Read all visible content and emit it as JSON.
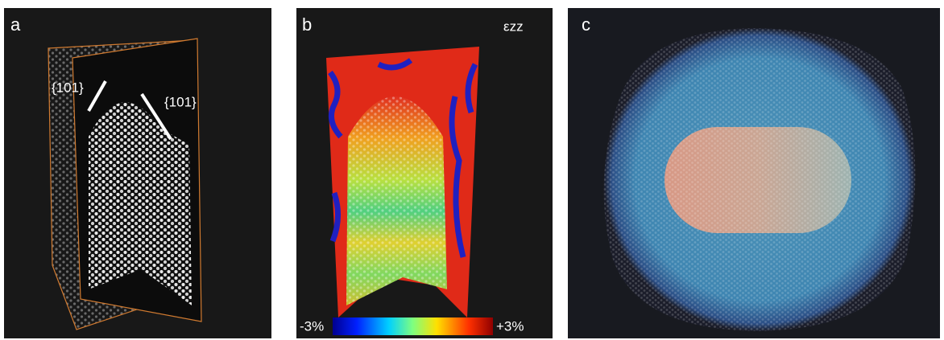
{
  "panels": [
    {
      "label": "a",
      "annotations": [
        "{101}",
        "{101}"
      ]
    },
    {
      "label": "b",
      "quantity": "εzz",
      "colorbar": {
        "min_label": "-3%",
        "max_label": "+3%"
      }
    },
    {
      "label": "c"
    }
  ]
}
